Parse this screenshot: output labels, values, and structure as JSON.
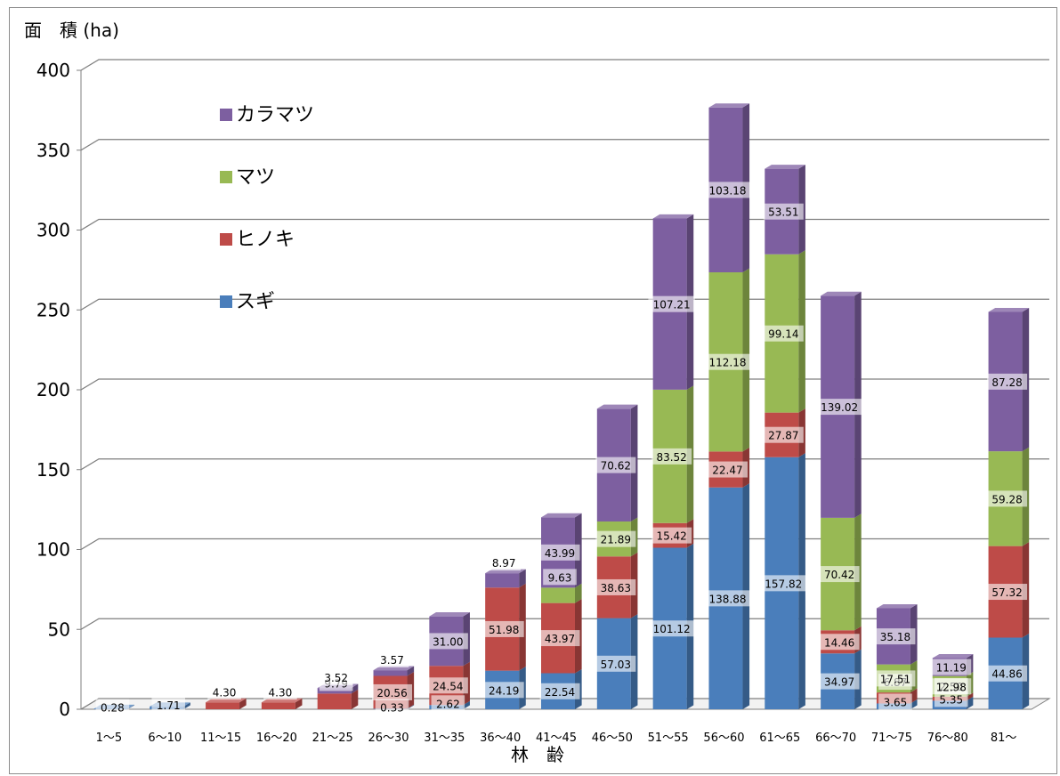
{
  "chart_data": {
    "type": "bar",
    "stacked": true,
    "three_d": true,
    "title": "",
    "ylabel": "面　積 (ha)",
    "xlabel": "林　齢",
    "ylim": [
      0,
      400
    ],
    "yticks": [
      0,
      50,
      100,
      150,
      200,
      250,
      300,
      350,
      400
    ],
    "grid": true,
    "legend_position": "upper-left inside plot",
    "categories": [
      "1～5",
      "6～10",
      "11～15",
      "16～20",
      "21～25",
      "26～30",
      "31～35",
      "36～40",
      "41～45",
      "46～50",
      "51～55",
      "56～60",
      "61～65",
      "66～70",
      "71～75",
      "76～80",
      "81～"
    ],
    "series": [
      {
        "name": "スギ",
        "color": "#4a7ebb",
        "values": [
          0.28,
          1.71,
          0,
          0,
          0,
          0.33,
          2.62,
          24.19,
          22.54,
          57.03,
          101.12,
          138.88,
          157.82,
          34.97,
          3.65,
          5.35,
          44.86
        ]
      },
      {
        "name": "ヒノキ",
        "color": "#be4b48",
        "values": [
          0,
          0,
          4.3,
          4.3,
          9.79,
          20.56,
          24.54,
          51.98,
          43.97,
          38.63,
          15.42,
          22.47,
          27.87,
          14.46,
          6.87,
          2.5,
          57.32
        ]
      },
      {
        "name": "マツ",
        "color": "#98b954",
        "values": [
          0,
          0,
          0,
          0,
          0,
          0,
          0,
          0,
          9.63,
          21.89,
          83.52,
          112.18,
          99.14,
          70.42,
          17.51,
          12.98,
          59.28
        ]
      },
      {
        "name": "カラマツ",
        "color": "#7d5fa0",
        "values": [
          0,
          0,
          0,
          0,
          3.52,
          3.57,
          31.0,
          8.97,
          43.99,
          70.62,
          107.21,
          103.18,
          53.51,
          139.02,
          35.18,
          11.19,
          87.28
        ]
      }
    ],
    "data_labels": [
      [
        "0.28",
        "",
        "",
        ""
      ],
      [
        "1.71",
        "",
        "",
        ""
      ],
      [
        "",
        "4.30",
        "",
        ""
      ],
      [
        "",
        "4.30",
        "",
        ""
      ],
      [
        "",
        "9.79",
        "",
        "3.52"
      ],
      [
        "0.33",
        "20.56",
        "",
        "3.57"
      ],
      [
        "2.62",
        "24.54",
        "",
        "31.00"
      ],
      [
        "24.19",
        "51.98",
        "",
        "8.97"
      ],
      [
        "22.54",
        "43.97",
        "9.63",
        "43.99"
      ],
      [
        "57.03",
        "38.63",
        "21.89",
        "70.62"
      ],
      [
        "101.12",
        "15.42",
        "83.52",
        "107.21"
      ],
      [
        "138.88",
        "22.47",
        "112.18",
        "103.18"
      ],
      [
        "157.82",
        "27.87",
        "99.14",
        "53.51"
      ],
      [
        "34.97",
        "14.46",
        "70.42",
        "139.02"
      ],
      [
        "3.65",
        "6.87",
        "17.51",
        "35.18"
      ],
      [
        "5.35",
        "2.50",
        "12.98",
        "11.19"
      ],
      [
        "44.86",
        "57.32",
        "59.28",
        "87.28"
      ]
    ],
    "legend_order": [
      "カラマツ",
      "マツ",
      "ヒノキ",
      "スギ"
    ],
    "colors": {
      "grid": "#7f7f7f",
      "wall": "#ffffff",
      "label_box": "#ffffff"
    }
  }
}
